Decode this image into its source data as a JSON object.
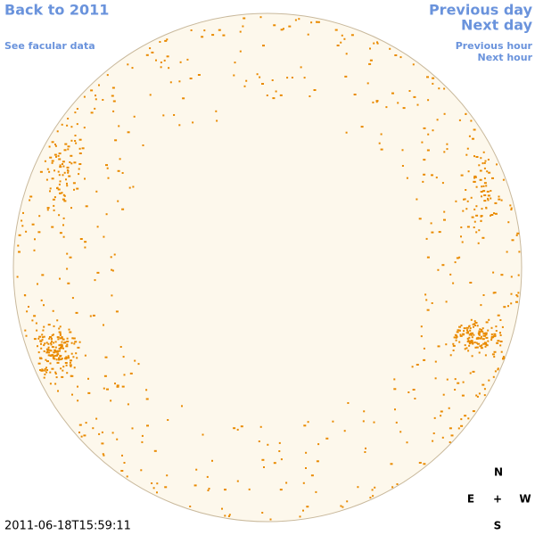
{
  "header": {
    "back": "Back to 2011",
    "facular": "See facular data"
  },
  "nav": {
    "previous_day": "Previous day",
    "next_day": "Next day",
    "previous_hour": "Previous hour",
    "next_hour": "Next hour"
  },
  "compass": {
    "north": "N",
    "east": "E",
    "center": "+",
    "west": "W",
    "south": "S"
  },
  "timestamp": "2011-06-18T15:59:11"
}
